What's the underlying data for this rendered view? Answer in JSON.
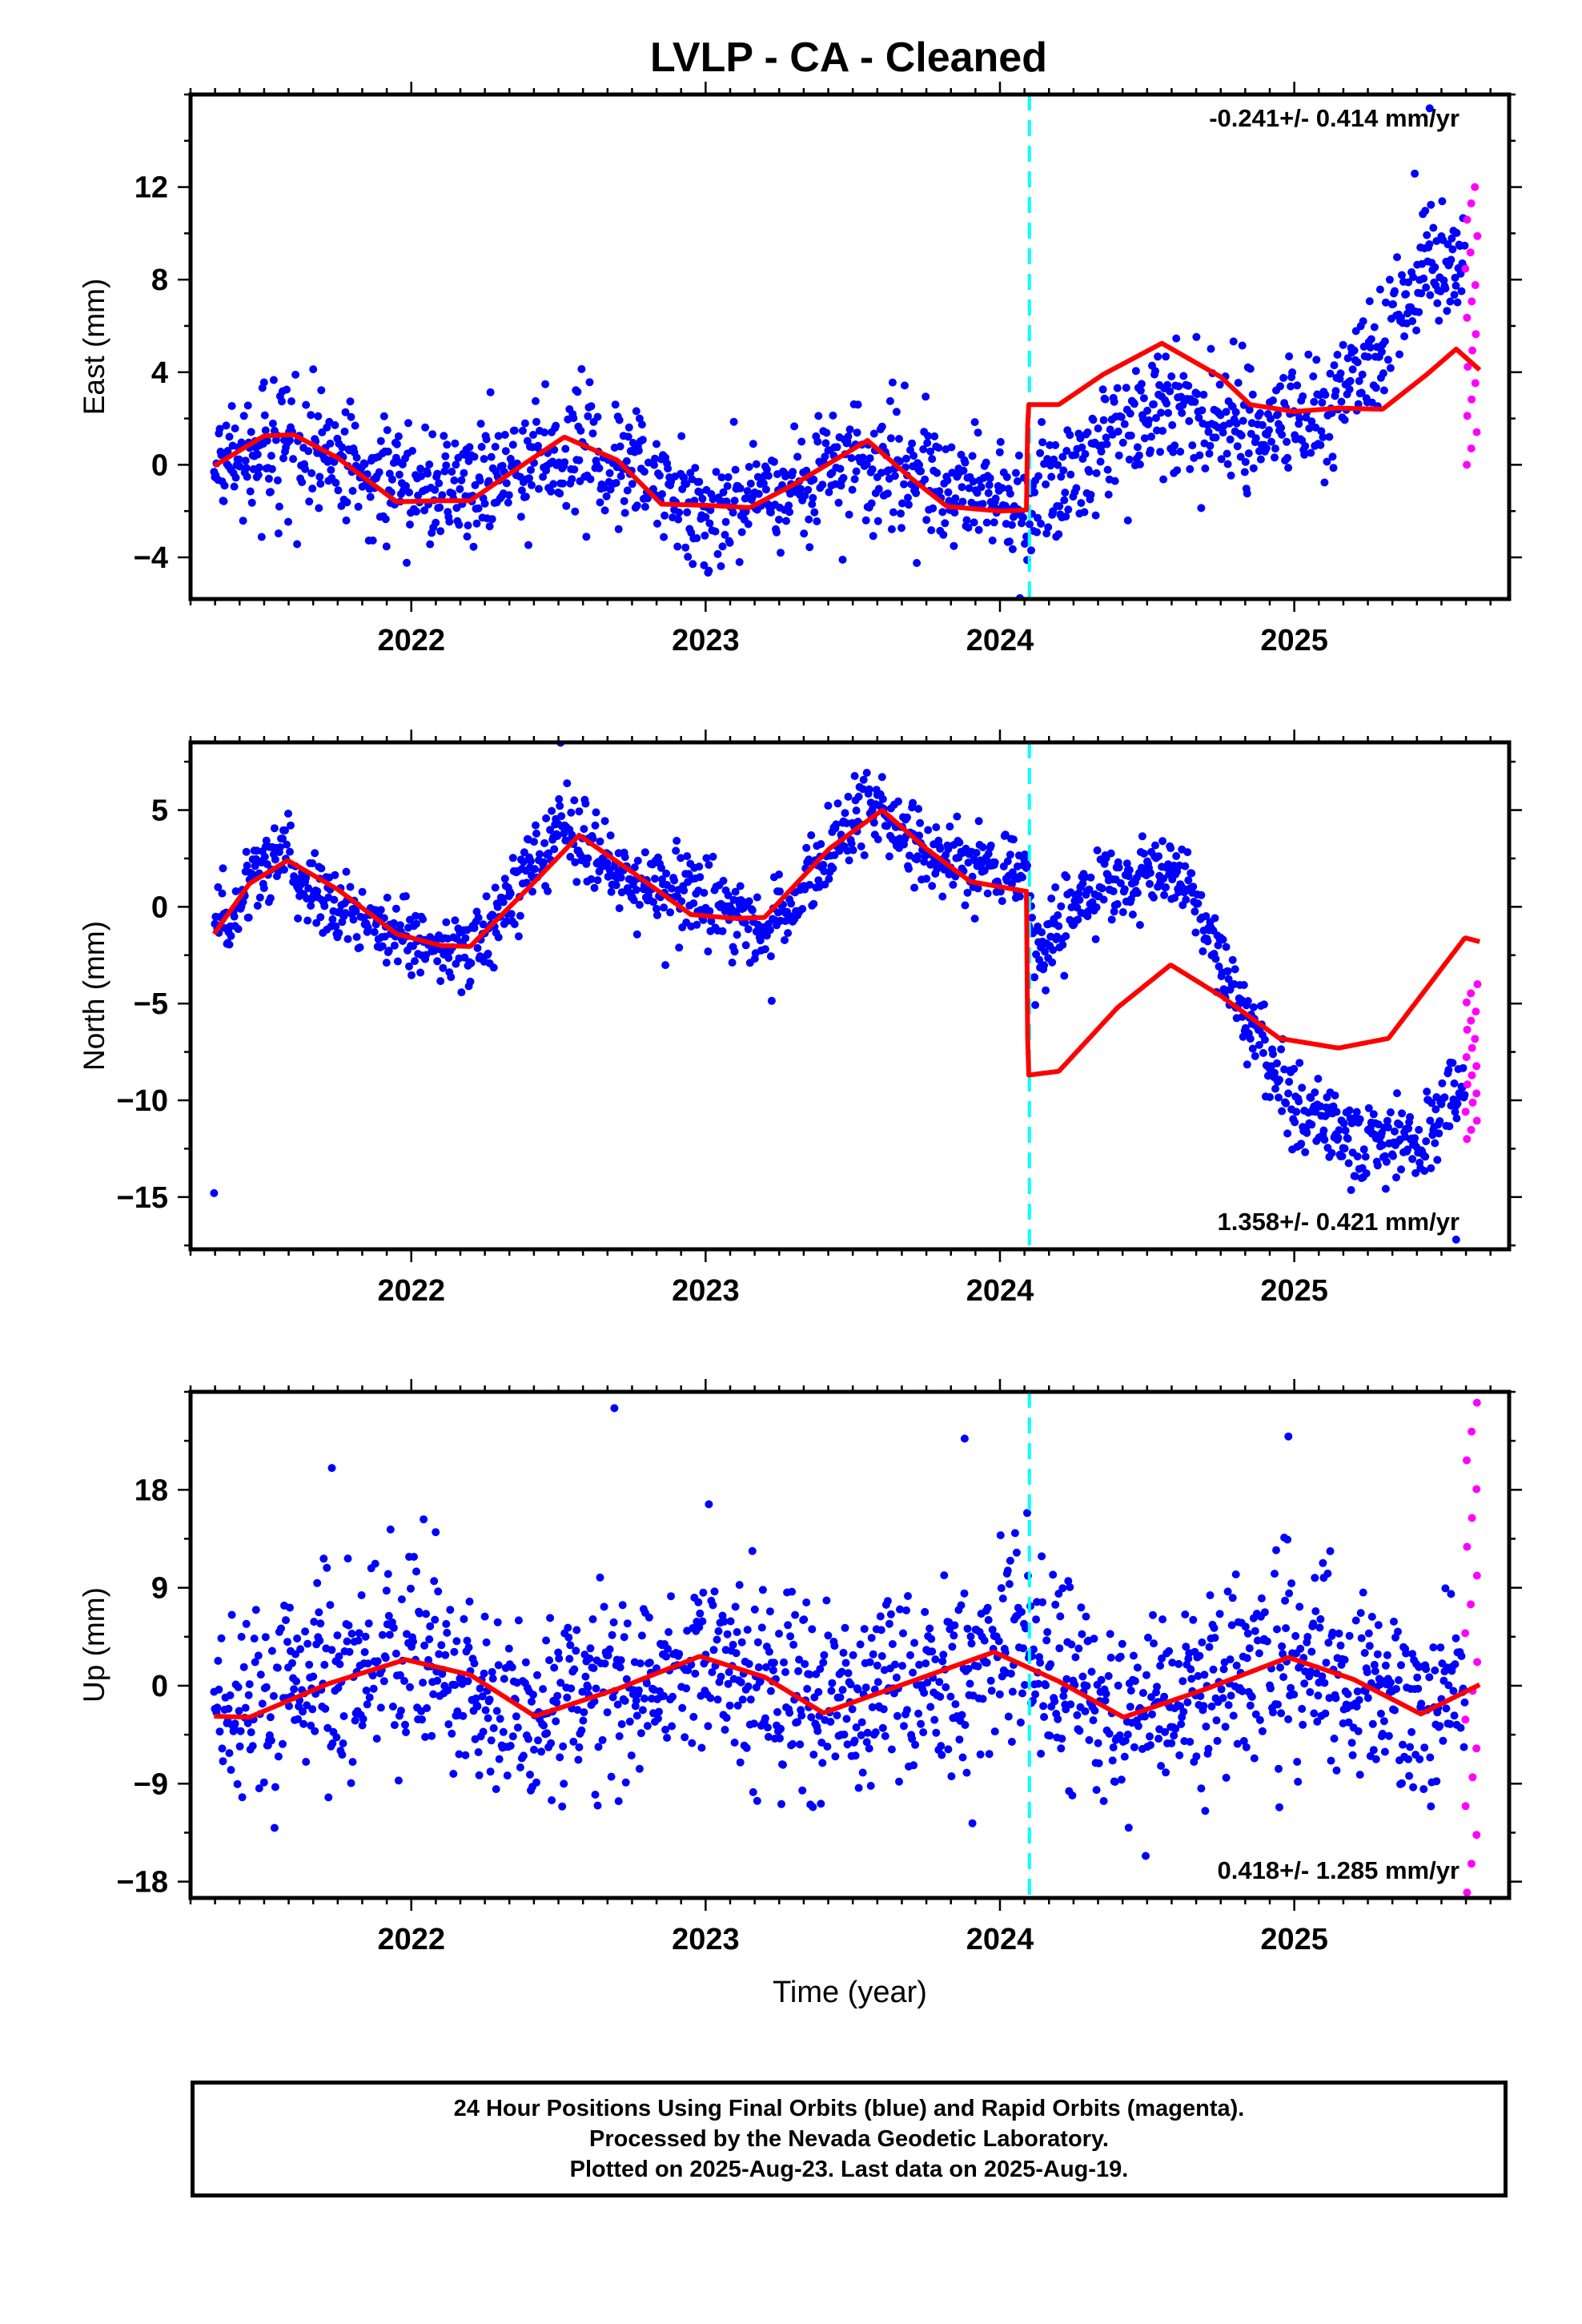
{
  "title": "LVLP  - CA - Cleaned",
  "footer": {
    "line1": "24 Hour Positions Using Final Orbits (blue) and Rapid Orbits (magenta).",
    "line2": "Processed by the Nevada Geodetic Laboratory.",
    "line3": "Plotted on 2025-Aug-23. Last data on 2025-Aug-19."
  },
  "colors": {
    "final_orbits": "#0000ff",
    "rapid_orbits": "#ff00ff",
    "model_fit": "#ff0000",
    "equipment_change": "#00ffff",
    "axes": "#000000"
  },
  "chart_data": [
    {
      "type": "scatter",
      "panel": "east",
      "ylabel": "East (mm)",
      "xlabel": "",
      "xlim": [
        2021.25,
        2025.73
      ],
      "ylim": [
        -5.8,
        16.0
      ],
      "yticks": [
        -4,
        0,
        4,
        8,
        12
      ],
      "ytick_labels": [
        "−4",
        "0",
        "4",
        "8",
        "12"
      ],
      "xticks": [
        2022,
        2023,
        2024,
        2025
      ],
      "rate_label": "-0.241+/- 0.414 mm/yr",
      "rate_position": "top-right",
      "offset_year": 2024.1,
      "data_start": 2021.33,
      "final_end": 2025.58,
      "rapid_start": 2025.58,
      "data_end": 2025.63,
      "trend_knots": [
        [
          2021.33,
          -0.3
        ],
        [
          2021.6,
          1.2
        ],
        [
          2021.9,
          -0.8
        ],
        [
          2022.2,
          -1.2
        ],
        [
          2022.5,
          0.8
        ],
        [
          2022.75,
          0.0
        ],
        [
          2022.95,
          -1.8
        ],
        [
          2023.25,
          -1.5
        ],
        [
          2023.5,
          0.5
        ],
        [
          2023.75,
          -0.5
        ],
        [
          2024.09,
          -1.8
        ],
        [
          2024.25,
          0.0
        ],
        [
          2024.55,
          2.6
        ],
        [
          2024.8,
          1.5
        ],
        [
          2025.1,
          2.2
        ],
        [
          2025.3,
          5.5
        ],
        [
          2025.45,
          8.8
        ],
        [
          2025.63,
          8.5
        ]
      ],
      "noise_sd": 1.3,
      "rapid_range": [
        0.0,
        12.0
      ],
      "model_fit_points": [
        [
          2021.33,
          -0.05
        ],
        [
          2021.5,
          1.25
        ],
        [
          2021.6,
          1.3
        ],
        [
          2021.75,
          0.3
        ],
        [
          2021.95,
          -1.6
        ],
        [
          2022.1,
          -1.55
        ],
        [
          2022.2,
          -1.55
        ],
        [
          2022.35,
          -0.25
        ],
        [
          2022.52,
          1.2
        ],
        [
          2022.7,
          0.2
        ],
        [
          2022.85,
          -1.7
        ],
        [
          2023.0,
          -1.75
        ],
        [
          2023.15,
          -1.85
        ],
        [
          2023.3,
          -0.85
        ],
        [
          2023.55,
          1.05
        ],
        [
          2023.7,
          -0.6
        ],
        [
          2023.82,
          -1.8
        ],
        [
          2024.0,
          -2.0
        ],
        [
          2024.09,
          -1.95
        ],
        [
          2024.095,
          2.6
        ],
        [
          2024.2,
          2.6
        ],
        [
          2024.35,
          3.9
        ],
        [
          2024.55,
          5.25
        ],
        [
          2024.75,
          3.8
        ],
        [
          2024.85,
          2.6
        ],
        [
          2025.0,
          2.3
        ],
        [
          2025.15,
          2.45
        ],
        [
          2025.3,
          2.4
        ],
        [
          2025.45,
          3.9
        ],
        [
          2025.55,
          5.0
        ],
        [
          2025.63,
          4.1
        ]
      ],
      "extra_points": [
        [
          2025.46,
          15.4
        ]
      ]
    },
    {
      "type": "scatter",
      "panel": "north",
      "ylabel": "North (mm)",
      "xlabel": "",
      "xlim": [
        2021.25,
        2025.73
      ],
      "ylim": [
        -17.7,
        8.5
      ],
      "yticks": [
        -15,
        -10,
        -5,
        0,
        5
      ],
      "ytick_labels": [
        "−15",
        "−10",
        "−5",
        "0",
        "5"
      ],
      "xticks": [
        2022,
        2023,
        2024,
        2025
      ],
      "rate_label": "1.358+/- 0.421 mm/yr",
      "rate_position": "bottom-right",
      "offset_year": 2024.1,
      "data_start": 2021.33,
      "final_end": 2025.58,
      "rapid_start": 2025.58,
      "data_end": 2025.63,
      "trend_knots": [
        [
          2021.33,
          -1.5
        ],
        [
          2021.55,
          3.0
        ],
        [
          2021.75,
          0.0
        ],
        [
          2022.0,
          -2.0
        ],
        [
          2022.2,
          -2.2
        ],
        [
          2022.5,
          4.0
        ],
        [
          2022.7,
          1.5
        ],
        [
          2023.0,
          0.5
        ],
        [
          2023.2,
          -1.5
        ],
        [
          2023.55,
          5.5
        ],
        [
          2023.75,
          2.5
        ],
        [
          2024.09,
          1.5
        ],
        [
          2024.12,
          -2.5
        ],
        [
          2024.35,
          1.0
        ],
        [
          2024.6,
          2.0
        ],
        [
          2024.85,
          -6.0
        ],
        [
          2025.0,
          -10.5
        ],
        [
          2025.25,
          -12.5
        ],
        [
          2025.45,
          -12.0
        ],
        [
          2025.63,
          -7.5
        ]
      ],
      "noise_sd": 1.0,
      "rapid_range": [
        -12.0,
        -4.0
      ],
      "model_fit_points": [
        [
          2021.33,
          -1.4
        ],
        [
          2021.45,
          1.2
        ],
        [
          2021.58,
          2.4
        ],
        [
          2021.75,
          0.9
        ],
        [
          2021.95,
          -1.4
        ],
        [
          2022.1,
          -2.0
        ],
        [
          2022.2,
          -2.05
        ],
        [
          2022.4,
          1.0
        ],
        [
          2022.57,
          3.7
        ],
        [
          2022.75,
          1.8
        ],
        [
          2022.95,
          -0.4
        ],
        [
          2023.1,
          -0.6
        ],
        [
          2023.2,
          -0.55
        ],
        [
          2023.42,
          3.0
        ],
        [
          2023.6,
          5.0
        ],
        [
          2023.75,
          3.0
        ],
        [
          2023.9,
          1.3
        ],
        [
          2024.09,
          0.8
        ],
        [
          2024.095,
          -8.7
        ],
        [
          2024.2,
          -8.5
        ],
        [
          2024.4,
          -5.2
        ],
        [
          2024.58,
          -3.0
        ],
        [
          2024.75,
          -4.6
        ],
        [
          2024.95,
          -6.8
        ],
        [
          2025.15,
          -7.3
        ],
        [
          2025.32,
          -6.8
        ],
        [
          2025.5,
          -3.2
        ],
        [
          2025.58,
          -1.6
        ],
        [
          2025.63,
          -1.8
        ]
      ],
      "extra_points": [
        [
          2021.33,
          -14.8
        ],
        [
          2025.55,
          -17.2
        ]
      ]
    },
    {
      "type": "scatter",
      "panel": "up",
      "ylabel": "Up (mm)",
      "xlabel": "Time (year)",
      "xlim": [
        2021.25,
        2025.73
      ],
      "ylim": [
        -19.5,
        27.0
      ],
      "yticks": [
        -18,
        -9,
        0,
        9,
        18
      ],
      "ytick_labels": [
        "−18",
        "−9",
        "0",
        "9",
        "18"
      ],
      "xticks": [
        2022,
        2023,
        2024,
        2025
      ],
      "rate_label": "0.418+/- 1.285 mm/yr",
      "rate_position": "bottom-right",
      "offset_year": 2024.1,
      "data_start": 2021.33,
      "final_end": 2025.58,
      "rapid_start": 2025.58,
      "data_end": 2025.63,
      "trend_knots": [
        [
          2021.33,
          -2.5
        ],
        [
          2021.95,
          2.5
        ],
        [
          2022.4,
          -2.5
        ],
        [
          2023.0,
          2.5
        ],
        [
          2023.4,
          -2.5
        ],
        [
          2024.0,
          3.0
        ],
        [
          2024.4,
          -2.5
        ],
        [
          2025.0,
          2.5
        ],
        [
          2025.45,
          -2.0
        ],
        [
          2025.63,
          0.0
        ]
      ],
      "noise_sd": 4.5,
      "rapid_range": [
        -19.0,
        26.0
      ],
      "model_fit_points": [
        [
          2021.33,
          -2.8
        ],
        [
          2021.45,
          -2.9
        ],
        [
          2021.72,
          0.2
        ],
        [
          2021.98,
          2.4
        ],
        [
          2022.2,
          1.0
        ],
        [
          2022.42,
          -2.8
        ],
        [
          2022.7,
          -0.3
        ],
        [
          2022.98,
          2.7
        ],
        [
          2023.2,
          0.8
        ],
        [
          2023.4,
          -2.5
        ],
        [
          2023.7,
          0.4
        ],
        [
          2023.98,
          3.1
        ],
        [
          2024.2,
          0.4
        ],
        [
          2024.42,
          -2.9
        ],
        [
          2024.7,
          -0.3
        ],
        [
          2024.98,
          2.6
        ],
        [
          2025.2,
          0.6
        ],
        [
          2025.43,
          -2.6
        ],
        [
          2025.63,
          0.1
        ]
      ],
      "extra_points": [
        [
          2022.69,
          25.5
        ],
        [
          2023.88,
          22.7
        ],
        [
          2024.98,
          22.9
        ],
        [
          2021.73,
          20.0
        ]
      ]
    }
  ]
}
